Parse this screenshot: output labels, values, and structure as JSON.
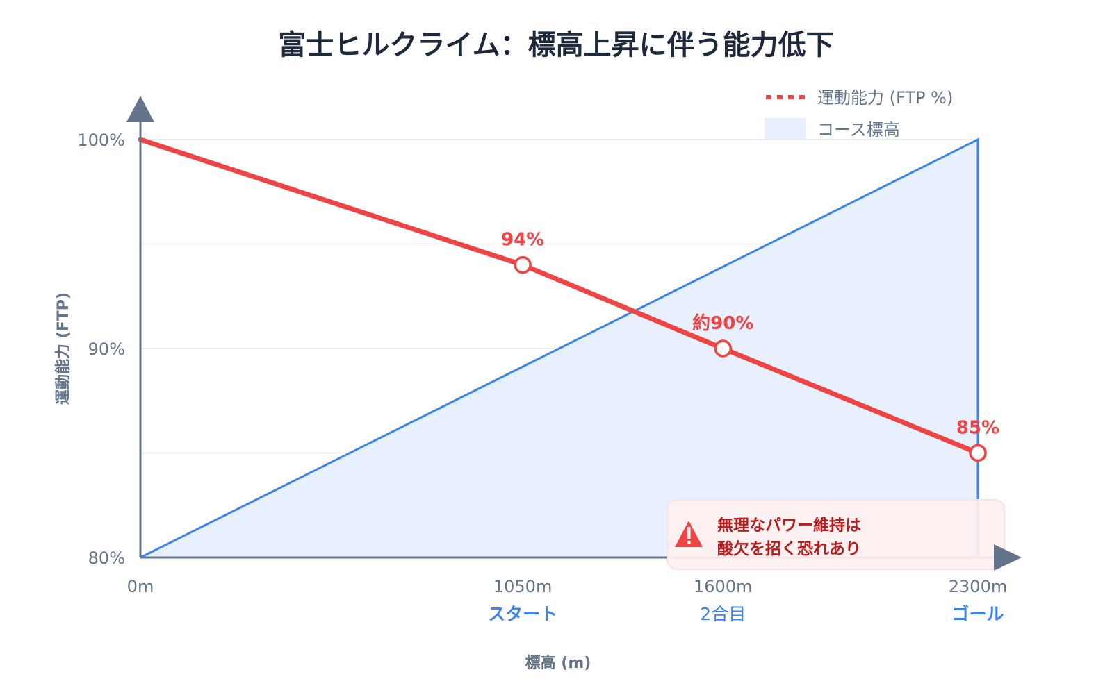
{
  "chart_data": {
    "type": "line",
    "title": "富士ヒルクライム：標高上昇に伴う能力低下",
    "xlabel": "標高 (m)",
    "ylabel": "運動能力 (FTP)",
    "xlim": [
      0,
      2300
    ],
    "ylim": [
      80,
      100
    ],
    "grid": true,
    "legend_position": "top-right",
    "x_ticks": [
      {
        "value": 0,
        "label": "0m",
        "sublabel": ""
      },
      {
        "value": 1050,
        "label": "1050m",
        "sublabel": "スタート"
      },
      {
        "value": 1600,
        "label": "1600m",
        "sublabel": "2合目"
      },
      {
        "value": 2300,
        "label": "2300m",
        "sublabel": "ゴール"
      }
    ],
    "y_ticks": [
      {
        "value": 100,
        "label": "100%"
      },
      {
        "value": 95,
        "label": ""
      },
      {
        "value": 90,
        "label": "90%"
      },
      {
        "value": 85,
        "label": ""
      },
      {
        "value": 80,
        "label": "80%"
      }
    ],
    "series": [
      {
        "name": "運動能力 (FTP %)",
        "type": "line",
        "color": "#ef4444",
        "x": [
          0,
          1050,
          1600,
          2300
        ],
        "y": [
          100,
          94,
          90,
          85
        ],
        "markers": [
          false,
          true,
          true,
          true
        ],
        "labels": [
          "",
          "94%",
          "約90%",
          "85%"
        ]
      },
      {
        "name": "コース標高",
        "type": "area",
        "color": "#3b82f6",
        "fill": "#e8f0fd",
        "x": [
          0,
          2300
        ],
        "elevation_m": [
          0,
          2300
        ]
      }
    ],
    "annotation": {
      "icon": "warning-triangle-icon",
      "lines": [
        "無理なパワー維持は",
        "酸欠を招く恐れあり"
      ],
      "color": "#b91c1c",
      "background": "#fef0f0"
    }
  }
}
